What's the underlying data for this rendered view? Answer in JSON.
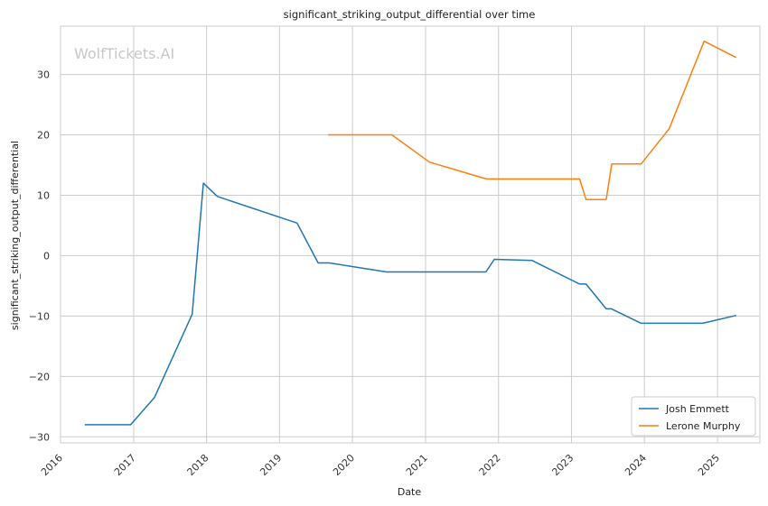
{
  "chart_data": {
    "type": "line",
    "title": "significant_striking_output_differential over time",
    "xlabel": "Date",
    "ylabel": "significant_striking_output_differential",
    "watermark": "WolfTickets.AI",
    "xlim": [
      "2016-01-01",
      "2025-08-01"
    ],
    "ylim": [
      -31,
      38
    ],
    "x_ticks": [
      "2016",
      "2017",
      "2018",
      "2019",
      "2020",
      "2021",
      "2022",
      "2023",
      "2024",
      "2025"
    ],
    "y_ticks": [
      -30,
      -20,
      -10,
      0,
      10,
      20,
      30
    ],
    "grid": true,
    "legend_position": "bottom-right",
    "colors": {
      "Josh Emmett": "#1f77b4",
      "Lerone Murphy": "#ff7f0e",
      "grid": "#cccccc",
      "axes": "#cccccc"
    },
    "series": [
      {
        "name": "Josh Emmett",
        "points": [
          [
            "2016-05-01",
            -28.0
          ],
          [
            "2016-12-17",
            -28.0
          ],
          [
            "2017-04-15",
            -23.5
          ],
          [
            "2017-10-21",
            -9.7
          ],
          [
            "2017-12-16",
            12.0
          ],
          [
            "2018-02-24",
            9.8
          ],
          [
            "2019-03-30",
            5.4
          ],
          [
            "2019-07-13",
            -1.2
          ],
          [
            "2019-09-07",
            -1.2
          ],
          [
            "2020-06-20",
            -2.7
          ],
          [
            "2021-10-30",
            -2.7
          ],
          [
            "2021-12-11",
            -0.6
          ],
          [
            "2022-06-18",
            -0.8
          ],
          [
            "2023-02-11",
            -4.7
          ],
          [
            "2023-03-15",
            -4.7
          ],
          [
            "2023-06-24",
            -8.8
          ],
          [
            "2023-07-20",
            -8.8
          ],
          [
            "2023-12-16",
            -11.2
          ],
          [
            "2024-10-19",
            -11.2
          ],
          [
            "2025-04-05",
            -9.9
          ]
        ]
      },
      {
        "name": "Lerone Murphy",
        "points": [
          [
            "2019-09-01",
            20.0
          ],
          [
            "2020-07-16",
            20.0
          ],
          [
            "2021-01-20",
            15.5
          ],
          [
            "2021-11-01",
            12.7
          ],
          [
            "2023-02-11",
            12.7
          ],
          [
            "2023-03-15",
            9.3
          ],
          [
            "2023-06-24",
            9.3
          ],
          [
            "2023-07-22",
            15.2
          ],
          [
            "2023-12-16",
            15.2
          ],
          [
            "2024-05-04",
            21.0
          ],
          [
            "2024-10-26",
            35.5
          ],
          [
            "2025-04-05",
            32.8
          ]
        ]
      }
    ]
  }
}
